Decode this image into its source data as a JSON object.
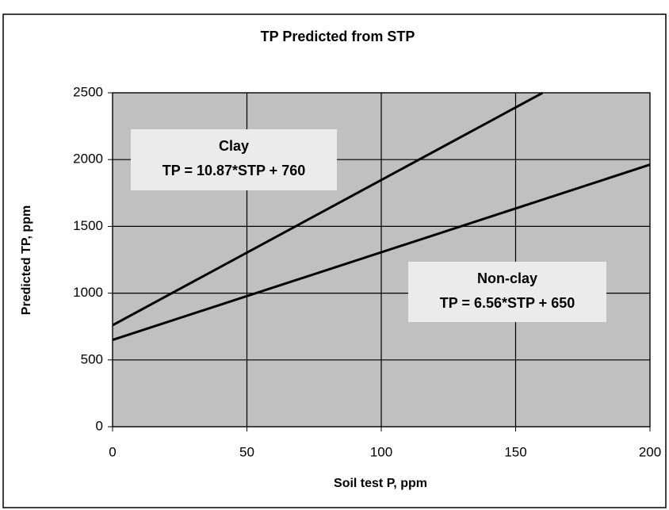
{
  "chart_data": {
    "type": "line",
    "title": "TP Predicted from STP",
    "x_label": "Soil test P, ppm",
    "y_label": "Predicted TP, ppm",
    "series": [
      {
        "name": "Clay",
        "color": "#000000",
        "x": [
          0,
          160
        ],
        "values": [
          760,
          2499.2
        ]
      },
      {
        "name": "Non-clay",
        "color": "#000000",
        "x": [
          0,
          200
        ],
        "values": [
          650,
          1962
        ]
      }
    ],
    "annotations": [
      {
        "title": "Clay",
        "text": "TP = 10.87*STP + 760"
      },
      {
        "title": "Non-clay",
        "text": "TP = 6.56*STP + 650"
      }
    ],
    "xlim": [
      0,
      200
    ],
    "xticks": [
      0,
      50,
      100,
      150,
      200
    ],
    "ylim": [
      0,
      2500
    ],
    "yticks": [
      0,
      500,
      1000,
      1500,
      2000,
      2500
    ],
    "grid": true,
    "plot_background": "#c0c0c0"
  }
}
